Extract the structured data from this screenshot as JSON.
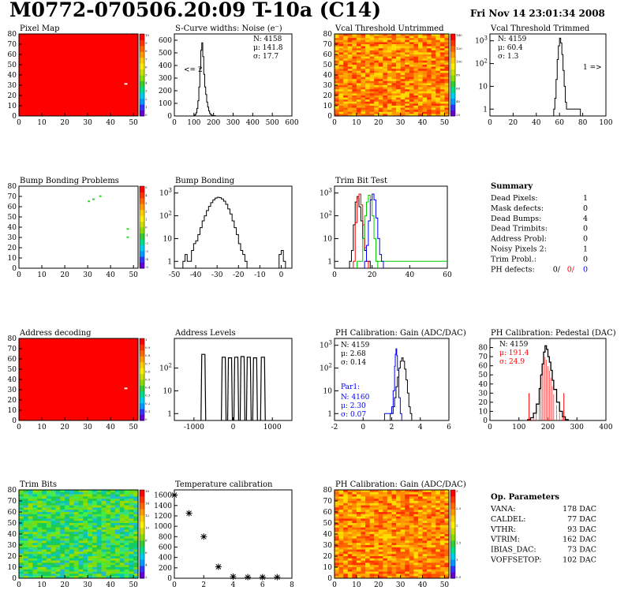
{
  "header": {
    "title": "M0772-070506.20:09 T-10a (C14)",
    "date": "Fri Nov 14 23:01:34 2008"
  },
  "colors": {
    "map_red": "#ff0000",
    "green_pixel": "#22dd22",
    "line_black": "#000000",
    "line_red": "#ff0000",
    "line_green": "#00cc00",
    "line_blue": "#0000ff",
    "stat_red": "#ff0000",
    "stat_blue": "#0000ff",
    "palette": [
      "#6600cc",
      "#3333ff",
      "#0099ff",
      "#00ccee",
      "#00dd88",
      "#33cc33",
      "#88dd00",
      "#ccdd00",
      "#ffee00",
      "#ffcc00",
      "#ff9900",
      "#ff6600",
      "#ff3300",
      "#ff0000"
    ]
  },
  "panels": {
    "pixel_map": {
      "title": "Pixel Map",
      "palette_ticks": [
        "10",
        "9",
        "8",
        "7",
        "6",
        "5",
        "4",
        "3",
        "2",
        "1",
        "0"
      ]
    },
    "scurve": {
      "title": "S-Curve widths: Noise (e⁻)",
      "n": "N: 4158",
      "mu": "μ: 141.8",
      "sigma": "σ: 17.7",
      "under": "<= 2"
    },
    "vcal_untrimmed": {
      "title": "Vcal Threshold Untrimmed",
      "palette_ticks": [
        "140",
        "120",
        "100",
        "80",
        "60",
        "40",
        "20"
      ]
    },
    "vcal_trimmed": {
      "title": "Vcal Threshold Trimmed",
      "n": "N: 4159",
      "mu": "μ: 60.4",
      "sigma": "σ:  1.3",
      "over": "1 =>"
    },
    "bump_problems": {
      "title": "Bump Bonding Problems",
      "palette_ticks": [
        "5",
        "4",
        "3",
        "2",
        "1",
        "0",
        "-1",
        "-2",
        "-3",
        "-4",
        "-5"
      ]
    },
    "bump_bonding": {
      "title": "Bump Bonding"
    },
    "trim_bit_test": {
      "title": "Trim Bit Test"
    },
    "summary": {
      "title": "Summary",
      "rows": [
        {
          "label": "Dead Pixels:",
          "value": "1"
        },
        {
          "label": "Mask defects:",
          "value": "0"
        },
        {
          "label": "Dead Bumps:",
          "value": "4"
        },
        {
          "label": "Dead Trimbits:",
          "value": "0"
        },
        {
          "label": "Address Probl:",
          "value": "0"
        },
        {
          "label": "Noisy Pixels 2:",
          "value": "1"
        },
        {
          "label": "Trim Probl.:",
          "value": "0"
        }
      ],
      "ph_label": "PH defects:",
      "ph_v1": "0/",
      "ph_v2": "0/",
      "ph_v3": "0"
    },
    "address_decoding": {
      "title": "Address decoding",
      "palette_ticks": [
        "1",
        "0.9",
        "0.8",
        "0.7",
        "0.6",
        "0.5",
        "0.4",
        "0.3",
        "0.2",
        "0.1",
        "0"
      ]
    },
    "address_levels": {
      "title": "Address Levels"
    },
    "ph_gain": {
      "title": "PH Calibration: Gain (ADC/DAC)",
      "n": "N: 4159",
      "mu": "μ: 2.68",
      "sigma": "σ: 0.14",
      "par1": "Par1:",
      "n2": "N: 4160",
      "mu2": "μ: 2.30",
      "sigma2": "σ: 0.07"
    },
    "ph_pedestal": {
      "title": "PH Calibration: Pedestal (DAC)",
      "n": "N: 4159",
      "mu": "μ: 191.4",
      "sigma": "σ: 24.9"
    },
    "trim_bits": {
      "title": "Trim Bits",
      "palette_ticks": [
        "16",
        "14",
        "12",
        "10",
        "8",
        "6",
        "4",
        "2"
      ]
    },
    "temperature": {
      "title": "Temperature calibration"
    },
    "ph_gain_map": {
      "title": "PH Calibration: Gain (ADC/DAC)",
      "palette_ticks": [
        "3",
        "2.5",
        "2",
        "1.5",
        "1",
        "0.5"
      ]
    },
    "op_params": {
      "title": "Op. Parameters",
      "rows": [
        {
          "label": "VANA:",
          "value": "178 DAC"
        },
        {
          "label": "CALDEL:",
          "value": "77 DAC"
        },
        {
          "label": "VTHR:",
          "value": "93 DAC"
        },
        {
          "label": "VTRIM:",
          "value": "162 DAC"
        },
        {
          "label": "IBIAS_DAC:",
          "value": "73 DAC"
        },
        {
          "label": "VOFFSETOP:",
          "value": "102 DAC"
        }
      ]
    }
  },
  "chart_data": [
    {
      "id": "pixel_map",
      "type": "heatmap",
      "title": "Pixel Map",
      "xlim": [
        0,
        52
      ],
      "ylim": [
        0,
        80
      ],
      "z_range": [
        0,
        10
      ],
      "fill": "uniform red",
      "xticks": [
        0,
        10,
        20,
        30,
        40,
        50
      ],
      "yticks": [
        0,
        10,
        20,
        30,
        40,
        50,
        60,
        70,
        80
      ],
      "special_pixels": [
        {
          "x": 46,
          "y": 31,
          "color": "white"
        }
      ]
    },
    {
      "id": "scurve",
      "type": "bar",
      "title": "S-Curve widths: Noise (e⁻)",
      "xlim": [
        0,
        600
      ],
      "ylim": [
        0,
        650
      ],
      "xticks": [
        0,
        100,
        200,
        300,
        400,
        500,
        600
      ],
      "yticks": [
        0,
        100,
        200,
        300,
        400,
        500,
        600
      ],
      "x": [
        90,
        100,
        105,
        110,
        115,
        120,
        125,
        130,
        135,
        140,
        145,
        150,
        155,
        160,
        165,
        170,
        175,
        180,
        185,
        190,
        200,
        210
      ],
      "values": [
        0,
        5,
        10,
        25,
        60,
        120,
        230,
        380,
        520,
        580,
        470,
        330,
        230,
        170,
        110,
        70,
        40,
        20,
        10,
        5,
        2,
        0
      ]
    },
    {
      "id": "vcal_untrimmed",
      "type": "heatmap",
      "title": "Vcal Threshold Untrimmed",
      "xlim": [
        0,
        52
      ],
      "ylim": [
        0,
        80
      ],
      "z_range": [
        0,
        140
      ],
      "xticks": [
        0,
        10,
        20,
        30,
        40,
        50
      ],
      "yticks": [
        0,
        10,
        20,
        30,
        40,
        50,
        60,
        70,
        80
      ]
    },
    {
      "id": "vcal_trimmed",
      "type": "bar",
      "title": "Vcal Threshold Trimmed",
      "log_y": true,
      "xlim": [
        0,
        100
      ],
      "ylim": [
        0.5,
        2000
      ],
      "xticks": [
        0,
        20,
        40,
        60,
        80,
        100
      ],
      "yticks": [
        "1",
        "10",
        "10^2",
        "10^3"
      ],
      "x": [
        55,
        56,
        57,
        58,
        59,
        60,
        61,
        62,
        63,
        64,
        65,
        66,
        70,
        72,
        74,
        76
      ],
      "values": [
        1,
        3,
        20,
        150,
        600,
        1300,
        800,
        250,
        50,
        10,
        2,
        1,
        1,
        1,
        1,
        1
      ]
    },
    {
      "id": "bump_problems",
      "type": "heatmap",
      "title": "Bump Bonding Problems",
      "xlim": [
        0,
        52
      ],
      "ylim": [
        0,
        80
      ],
      "z_range": [
        -5,
        5
      ],
      "xticks": [
        0,
        10,
        20,
        30,
        40,
        50
      ],
      "yticks": [
        0,
        10,
        20,
        30,
        40,
        50,
        60,
        70,
        80
      ],
      "points": [
        {
          "x": 30,
          "y": 65
        },
        {
          "x": 32,
          "y": 67
        },
        {
          "x": 35,
          "y": 70
        },
        {
          "x": 47,
          "y": 38
        },
        {
          "x": 47,
          "y": 30
        }
      ]
    },
    {
      "id": "bump_bonding",
      "type": "bar",
      "title": "Bump Bonding",
      "log_y": true,
      "xlim": [
        -50,
        5
      ],
      "ylim": [
        0.5,
        2000
      ],
      "xticks": [
        -50,
        -40,
        -30,
        -20,
        -10,
        0
      ],
      "yticks": [
        "1",
        "10",
        "10^2",
        "10^3"
      ],
      "x": [
        -46,
        -45,
        -44,
        -43,
        -42,
        -41,
        -40,
        -39,
        -38,
        -37,
        -36,
        -35,
        -34,
        -33,
        -32,
        -31,
        -30,
        -29,
        -28,
        -27,
        -26,
        -25,
        -24,
        -23,
        -22,
        -21,
        -20,
        -19,
        -18,
        -17,
        -1,
        0,
        1
      ],
      "values": [
        1,
        2,
        1,
        1,
        3,
        6,
        8,
        15,
        30,
        60,
        100,
        170,
        260,
        380,
        500,
        600,
        650,
        620,
        550,
        440,
        320,
        200,
        120,
        60,
        30,
        15,
        6,
        3,
        2,
        1,
        2,
        3,
        1
      ]
    },
    {
      "id": "trim_bit_test",
      "type": "line",
      "title": "Trim Bit Test",
      "log_y": true,
      "xlim": [
        0,
        60
      ],
      "ylim": [
        0.5,
        2000
      ],
      "xticks": [
        0,
        20,
        40,
        60
      ],
      "yticks": [
        "1",
        "10",
        "10^2",
        "10^3"
      ],
      "series": [
        {
          "color": "black",
          "x": [
            8,
            9,
            10,
            11,
            12,
            13,
            14,
            15,
            16,
            17,
            18
          ],
          "values": [
            1,
            3,
            40,
            400,
            700,
            250,
            60,
            10,
            3,
            1,
            1
          ]
        },
        {
          "color": "red",
          "x": [
            10,
            11,
            12,
            13,
            14,
            15,
            16,
            17
          ],
          "values": [
            1,
            50,
            600,
            900,
            300,
            40,
            4,
            1
          ]
        },
        {
          "color": "green",
          "x": [
            12,
            14,
            15,
            16,
            17,
            18,
            19,
            20,
            21,
            22,
            60
          ],
          "values": [
            1,
            1,
            10,
            100,
            400,
            800,
            500,
            100,
            10,
            1,
            1
          ]
        },
        {
          "color": "blue",
          "x": [
            16,
            17,
            18,
            19,
            20,
            21,
            22,
            23,
            24,
            25
          ],
          "values": [
            1,
            5,
            60,
            500,
            900,
            500,
            80,
            10,
            2,
            1
          ]
        }
      ]
    },
    {
      "id": "address_decoding",
      "type": "heatmap",
      "title": "Address decoding",
      "xlim": [
        0,
        52
      ],
      "ylim": [
        0,
        80
      ],
      "z_range": [
        0,
        1
      ],
      "fill": "uniform red",
      "xticks": [
        0,
        10,
        20,
        30,
        40,
        50
      ],
      "yticks": [
        0,
        10,
        20,
        30,
        40,
        50,
        60,
        70,
        80
      ],
      "special_pixels": [
        {
          "x": 46,
          "y": 31,
          "color": "white"
        }
      ]
    },
    {
      "id": "address_levels",
      "type": "bar",
      "title": "Address Levels",
      "log_y": true,
      "xlim": [
        -1500,
        1500
      ],
      "ylim": [
        0.5,
        2000
      ],
      "xticks": [
        -1000,
        0,
        1000
      ],
      "yticks": [
        "1",
        "10",
        "10^2"
      ],
      "x": [
        -760,
        -240,
        -80,
        80,
        240,
        400,
        560,
        760
      ],
      "values": [
        400,
        300,
        280,
        300,
        320,
        300,
        280,
        300
      ]
    },
    {
      "id": "ph_gain",
      "type": "line",
      "title": "PH Calibration: Gain (ADC/DAC)",
      "log_y": true,
      "xlim": [
        -2,
        6
      ],
      "ylim": [
        0.5,
        2000
      ],
      "xticks": [
        -2,
        0,
        2,
        4,
        6
      ],
      "yticks": [
        "1",
        "10",
        "10^2",
        "10^3"
      ],
      "series": [
        {
          "color": "black",
          "x": [
            1.9,
            2.1,
            2.2,
            2.3,
            2.4,
            2.5,
            2.6,
            2.7,
            2.8,
            2.9,
            3.0,
            3.1,
            3.2,
            3.3
          ],
          "values": [
            1,
            2,
            5,
            15,
            40,
            100,
            200,
            280,
            200,
            90,
            30,
            8,
            2,
            1
          ]
        },
        {
          "color": "blue",
          "x": [
            1.5,
            2.0,
            2.1,
            2.2,
            2.25,
            2.3,
            2.35,
            2.4,
            2.5,
            2.6
          ],
          "values": [
            1,
            2,
            10,
            120,
            400,
            700,
            350,
            80,
            5,
            1
          ]
        }
      ]
    },
    {
      "id": "ph_pedestal",
      "type": "bar",
      "title": "PH Calibration: Pedestal (DAC)",
      "xlim": [
        0,
        400
      ],
      "ylim": [
        0,
        90
      ],
      "xticks": [
        0,
        100,
        200,
        300,
        400
      ],
      "yticks": [
        0,
        10,
        20,
        30,
        40,
        50,
        60,
        70,
        80
      ],
      "x": [
        130,
        140,
        150,
        160,
        170,
        175,
        180,
        185,
        190,
        195,
        200,
        205,
        210,
        215,
        220,
        230,
        240,
        250,
        260
      ],
      "values": [
        1,
        3,
        8,
        18,
        35,
        50,
        62,
        75,
        82,
        78,
        70,
        64,
        55,
        44,
        34,
        20,
        10,
        4,
        1
      ]
    },
    {
      "id": "trim_bits",
      "type": "heatmap",
      "title": "Trim Bits",
      "xlim": [
        0,
        52
      ],
      "ylim": [
        0,
        80
      ],
      "z_range": [
        0,
        16
      ],
      "xticks": [
        0,
        10,
        20,
        30,
        40,
        50
      ],
      "yticks": [
        0,
        10,
        20,
        30,
        40,
        50,
        60,
        70,
        80
      ]
    },
    {
      "id": "temperature",
      "type": "scatter",
      "title": "Temperature calibration",
      "xlim": [
        0,
        8
      ],
      "ylim": [
        0,
        1700
      ],
      "xticks": [
        0,
        2,
        4,
        6,
        8
      ],
      "yticks": [
        0,
        200,
        400,
        600,
        800,
        1000,
        1200,
        1400,
        1600
      ],
      "x": [
        0,
        1,
        2,
        3,
        4,
        5,
        6,
        7
      ],
      "values": [
        1600,
        1250,
        800,
        220,
        30,
        20,
        20,
        20
      ]
    },
    {
      "id": "ph_gain_map",
      "type": "heatmap",
      "title": "PH Calibration: Gain (ADC/DAC)",
      "xlim": [
        0,
        52
      ],
      "ylim": [
        0,
        80
      ],
      "z_range": [
        0,
        3
      ],
      "xticks": [
        0,
        10,
        20,
        30,
        40,
        50
      ],
      "yticks": [
        0,
        10,
        20,
        30,
        40,
        50,
        60,
        70,
        80
      ]
    }
  ]
}
